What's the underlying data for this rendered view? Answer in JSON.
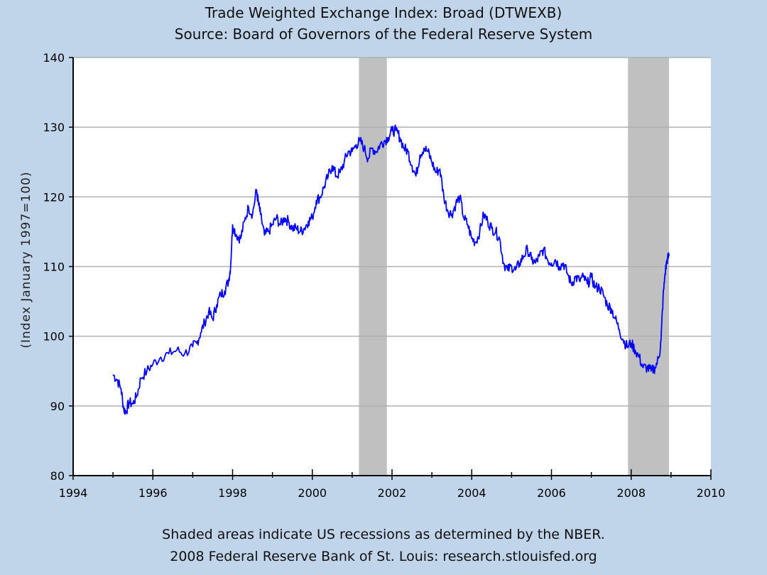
{
  "chart_data": {
    "type": "line",
    "title": "Trade Weighted Exchange Index: Broad (DTWEXB)",
    "subtitle": "Source: Board of Governors of the Federal Reserve System",
    "xlabel": "",
    "ylabel": "(Index January 1997=100)",
    "xlim": [
      1994,
      2010
    ],
    "ylim": [
      80,
      140
    ],
    "xticks": [
      1994,
      1996,
      1998,
      2000,
      2002,
      2004,
      2006,
      2008,
      2010
    ],
    "yticks": [
      80,
      90,
      100,
      110,
      120,
      130,
      140
    ],
    "xtick_labels": [
      "1994",
      "1996",
      "1998",
      "2000",
      "2002",
      "2004",
      "2006",
      "2008",
      "2010"
    ],
    "ytick_labels": [
      "80",
      "90",
      "100",
      "110",
      "120",
      "130",
      "140"
    ],
    "grid": "horizontal",
    "recessions": [
      {
        "start": 2001.17,
        "end": 2001.87
      },
      {
        "start": 2007.92,
        "end": 2008.95
      }
    ],
    "series": [
      {
        "name": "DTWEXB",
        "color": "#0000ff",
        "x": [
          1995.0,
          1995.1,
          1995.2,
          1995.27,
          1995.33,
          1995.4,
          1995.5,
          1995.6,
          1995.7,
          1995.85,
          1996.0,
          1996.2,
          1996.4,
          1996.6,
          1996.8,
          1997.0,
          1997.1,
          1997.2,
          1997.3,
          1997.4,
          1997.5,
          1997.6,
          1997.7,
          1997.8,
          1997.9,
          1997.95,
          1998.0,
          1998.1,
          1998.2,
          1998.3,
          1998.4,
          1998.5,
          1998.6,
          1998.65,
          1998.7,
          1998.8,
          1998.9,
          1999.0,
          1999.1,
          1999.2,
          1999.3,
          1999.4,
          1999.5,
          1999.6,
          1999.7,
          1999.8,
          1999.9,
          2000.0,
          2000.1,
          2000.2,
          2000.3,
          2000.4,
          2000.5,
          2000.6,
          2000.7,
          2000.8,
          2000.9,
          2001.0,
          2001.1,
          2001.2,
          2001.3,
          2001.4,
          2001.5,
          2001.6,
          2001.7,
          2001.8,
          2001.9,
          2002.0,
          2002.1,
          2002.2,
          2002.3,
          2002.4,
          2002.5,
          2002.6,
          2002.7,
          2002.8,
          2002.9,
          2003.0,
          2003.1,
          2003.2,
          2003.3,
          2003.4,
          2003.5,
          2003.6,
          2003.7,
          2003.8,
          2003.9,
          2004.0,
          2004.1,
          2004.2,
          2004.3,
          2004.4,
          2004.5,
          2004.6,
          2004.7,
          2004.8,
          2004.9,
          2005.0,
          2005.1,
          2005.2,
          2005.3,
          2005.4,
          2005.5,
          2005.6,
          2005.7,
          2005.8,
          2005.9,
          2006.0,
          2006.1,
          2006.2,
          2006.3,
          2006.4,
          2006.5,
          2006.6,
          2006.7,
          2006.8,
          2006.9,
          2007.0,
          2007.1,
          2007.2,
          2007.3,
          2007.4,
          2007.5,
          2007.6,
          2007.7,
          2007.8,
          2007.9,
          2008.0,
          2008.1,
          2008.2,
          2008.3,
          2008.4,
          2008.5,
          2008.6,
          2008.7,
          2008.75,
          2008.8,
          2008.85,
          2008.9,
          2008.95
        ],
        "values": [
          94.5,
          93.8,
          92.5,
          89.5,
          89.2,
          90.5,
          90.3,
          91.5,
          94.0,
          95.0,
          96.0,
          97.0,
          97.5,
          98.0,
          97.5,
          98.5,
          99.0,
          100.5,
          102.0,
          103.5,
          102.5,
          104.5,
          106.0,
          106.5,
          108.0,
          110.0,
          116.0,
          114.5,
          114.0,
          116.5,
          118.5,
          117.5,
          121.0,
          119.0,
          117.5,
          114.5,
          115.0,
          116.0,
          117.0,
          116.0,
          117.0,
          116.5,
          115.5,
          115.5,
          115.0,
          115.5,
          116.5,
          117.0,
          119.5,
          120.0,
          121.5,
          123.0,
          124.5,
          123.0,
          123.5,
          125.0,
          126.5,
          126.5,
          127.5,
          128.0,
          127.0,
          125.5,
          127.0,
          126.5,
          127.5,
          128.0,
          128.5,
          129.5,
          129.5,
          128.5,
          127.0,
          126.5,
          124.5,
          123.0,
          126.0,
          127.0,
          126.5,
          125.0,
          123.5,
          124.0,
          120.0,
          118.0,
          117.5,
          119.0,
          120.0,
          117.0,
          116.0,
          114.0,
          113.5,
          115.0,
          117.5,
          116.5,
          115.5,
          115.0,
          114.0,
          110.5,
          109.5,
          110.0,
          109.5,
          110.5,
          111.5,
          112.5,
          111.0,
          110.5,
          111.5,
          112.5,
          111.0,
          110.5,
          111.0,
          110.0,
          110.5,
          109.0,
          107.5,
          108.5,
          108.0,
          108.5,
          107.5,
          108.5,
          107.0,
          107.0,
          106.0,
          104.5,
          104.0,
          102.5,
          101.0,
          99.5,
          98.5,
          99.0,
          98.0,
          97.0,
          95.5,
          95.5,
          95.0,
          95.5,
          97.0,
          99.5,
          105.5,
          109.0,
          111.0,
          111.5
        ]
      }
    ]
  },
  "footer": {
    "line1": "Shaded areas indicate US recessions as determined by the NBER.",
    "line2": "2008 Federal Reserve Bank of St. Louis: research.stlouisfed.org"
  }
}
